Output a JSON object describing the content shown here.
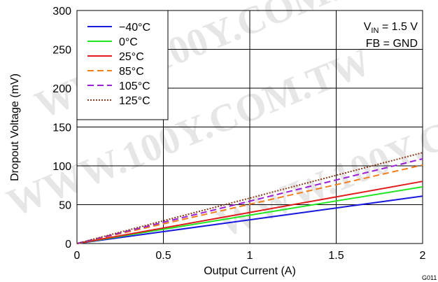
{
  "chart_data": {
    "type": "line",
    "xlabel": "Output Current (A)",
    "ylabel": "Dropout Voltage (mV)",
    "xlim": [
      0,
      2
    ],
    "ylim": [
      0,
      300
    ],
    "x_ticks": [
      "0",
      "0.5",
      "1",
      "1.5",
      "2"
    ],
    "y_ticks": [
      "0",
      "50",
      "100",
      "150",
      "200",
      "250",
      "300"
    ],
    "grid": true,
    "legend_position": "top-left",
    "notes": {
      "vin_prefix": "V",
      "vin_sub": "IN",
      "vin_value": " = 1.5 V",
      "fb": "FB = GND"
    },
    "figure_code": "G011",
    "watermark": "WWW.100Y.COM.TW",
    "x": [
      0,
      0.5,
      1,
      1.5,
      2
    ],
    "series": [
      {
        "name": "−40°C",
        "color": "#1a1adf",
        "dash": "solid",
        "values": [
          0,
          15.3,
          30.5,
          45.8,
          61
        ]
      },
      {
        "name": "0°C",
        "color": "#22e622",
        "dash": "solid",
        "values": [
          0,
          18.3,
          36.5,
          54.8,
          73
        ]
      },
      {
        "name": "25°C",
        "color": "#e01b1b",
        "dash": "solid",
        "values": [
          0,
          20,
          40,
          60,
          80
        ]
      },
      {
        "name": "85°C",
        "color": "#f07f1a",
        "dash": "dashed",
        "values": [
          0,
          25.3,
          50.5,
          75.8,
          101
        ]
      },
      {
        "name": "105°C",
        "color": "#9b1fd6",
        "dash": "dashed",
        "values": [
          0,
          27.3,
          54.5,
          81.8,
          109
        ]
      },
      {
        "name": "125°C",
        "color": "#8b3a1a",
        "dash": "dotted",
        "values": [
          0,
          29.3,
          58.5,
          87.8,
          117
        ]
      }
    ]
  }
}
